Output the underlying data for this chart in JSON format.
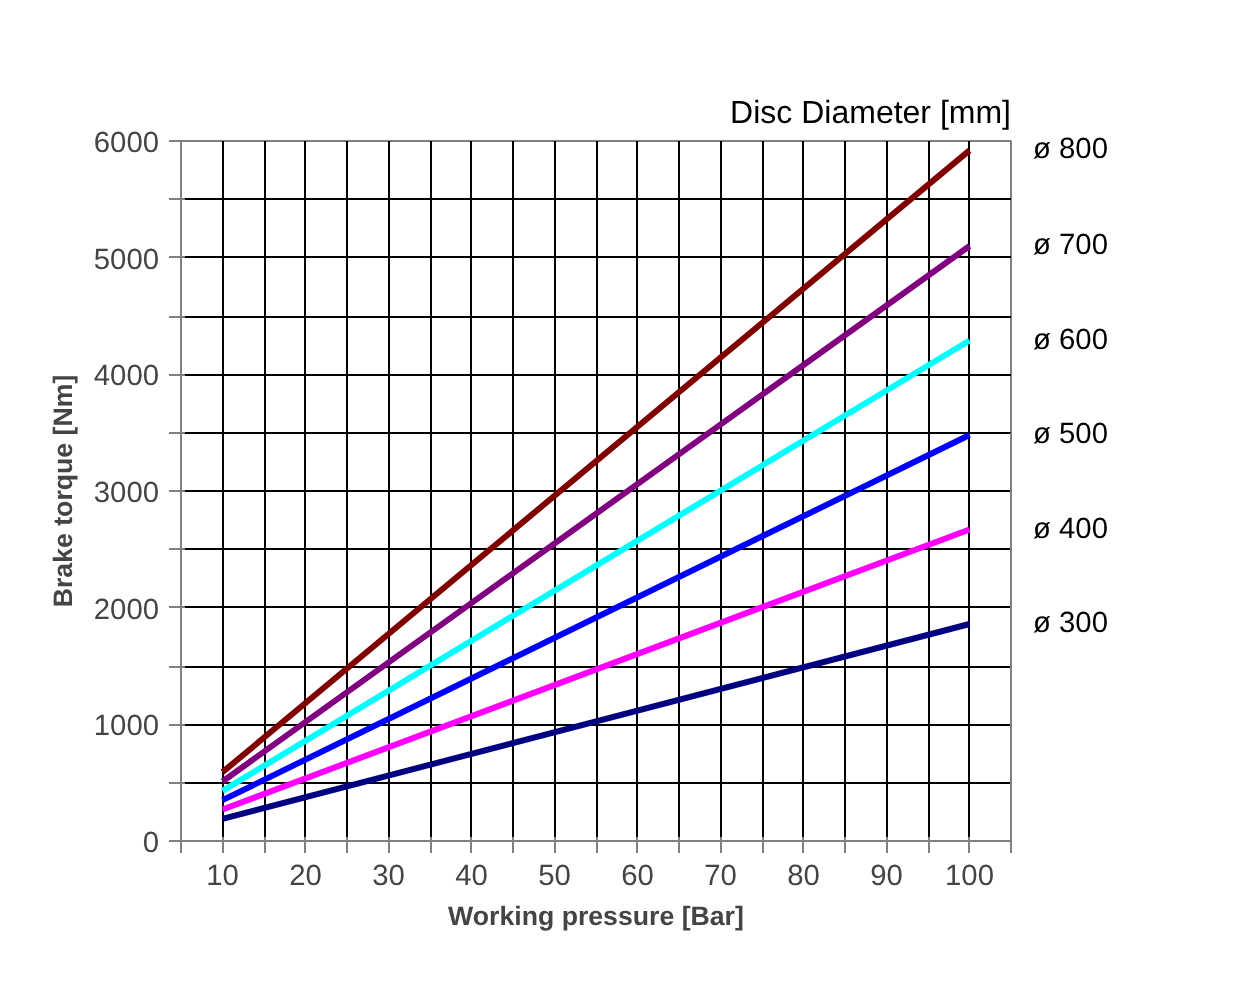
{
  "chart_data": {
    "type": "line",
    "xlabel": "Working pressure [Bar]",
    "ylabel": "Brake torque [Nm]",
    "legend_title": "Disc Diameter [mm]",
    "x": [
      10,
      100
    ],
    "series": [
      {
        "name": "ø 300",
        "color": "#000080",
        "values": [
          190,
          1860
        ]
      },
      {
        "name": "ø 400",
        "color": "#ff00ff",
        "values": [
          270,
          2670
        ]
      },
      {
        "name": "ø 500",
        "color": "#0000ff",
        "values": [
          350,
          3480
        ]
      },
      {
        "name": "ø 600",
        "color": "#00ffff",
        "values": [
          430,
          4290
        ]
      },
      {
        "name": "ø 700",
        "color": "#800080",
        "values": [
          510,
          5100
        ]
      },
      {
        "name": "ø 800",
        "color": "#800000",
        "values": [
          590,
          5920
        ]
      }
    ],
    "xlim": [
      5,
      105
    ],
    "xticks": [
      {
        "value": 5,
        "label": null
      },
      10,
      {
        "value": 15,
        "label": null
      },
      20,
      {
        "value": 25,
        "label": null
      },
      30,
      {
        "value": 35,
        "label": null
      },
      40,
      {
        "value": 45,
        "label": null
      },
      50,
      {
        "value": 55,
        "label": null
      },
      60,
      {
        "value": 65,
        "label": null
      },
      70,
      {
        "value": 75,
        "label": null
      },
      80,
      {
        "value": 85,
        "label": null
      },
      90,
      {
        "value": 95,
        "label": null
      },
      100,
      {
        "value": 105,
        "label": null
      }
    ],
    "ylim": [
      0,
      6000
    ],
    "yticks": [
      0,
      {
        "value": 500,
        "label": null
      },
      1000,
      {
        "value": 1500,
        "label": null
      },
      2000,
      {
        "value": 2500,
        "label": null
      },
      3000,
      {
        "value": 3500,
        "label": null
      },
      4000,
      {
        "value": 4500,
        "label": null
      },
      5000,
      {
        "value": 5500,
        "label": null
      },
      6000
    ],
    "grid": true,
    "legend": false,
    "marker": "none",
    "line_style": "solid"
  }
}
